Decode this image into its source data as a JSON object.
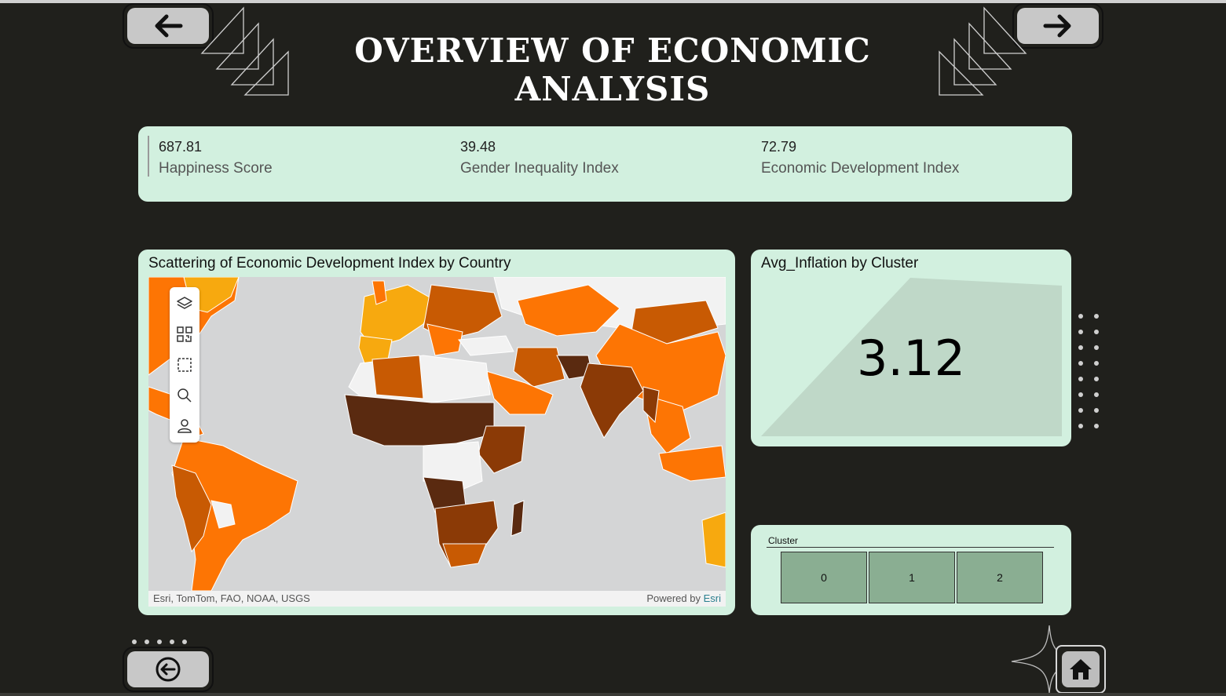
{
  "header": {
    "title": "OVERVIEW OF ECONOMIC ANALYSIS"
  },
  "navigation": {
    "back_icon": "arrow-left-icon",
    "next_icon": "arrow-right-icon",
    "prev_icon": "circle-arrow-left-icon",
    "home_icon": "home-icon"
  },
  "kpis": [
    {
      "value": "687.81",
      "label": "Happiness Score"
    },
    {
      "value": "39.48",
      "label": "Gender Inequality Index"
    },
    {
      "value": "72.79",
      "label": "Economic Development Index"
    }
  ],
  "map": {
    "title": "Scattering of Economic Development Index by Country",
    "attribution": "Esri, TomTom, FAO, NOAA, USGS",
    "powered_by": "Powered by",
    "powered_by_brand": "Esri",
    "tools": [
      "layers-icon",
      "qr-grid-icon",
      "select-box-icon",
      "search-icon",
      "user-icon"
    ],
    "colors": {
      "ocean": "#d4d5d6",
      "no_data": "#f2f2f2",
      "light": "#f7a90f",
      "mid": "#fd7504",
      "dark": "#c85a03",
      "darker": "#8b3a06",
      "darkest": "#5a2a10"
    }
  },
  "gauge": {
    "title": "Avg_Inflation by Cluster",
    "value": "3.12"
  },
  "slicer": {
    "label": "Cluster",
    "options": [
      "0",
      "1",
      "2"
    ]
  },
  "colors": {
    "background": "#20201c",
    "card": "#d2f0df",
    "slicer_option": "#8aae92"
  }
}
